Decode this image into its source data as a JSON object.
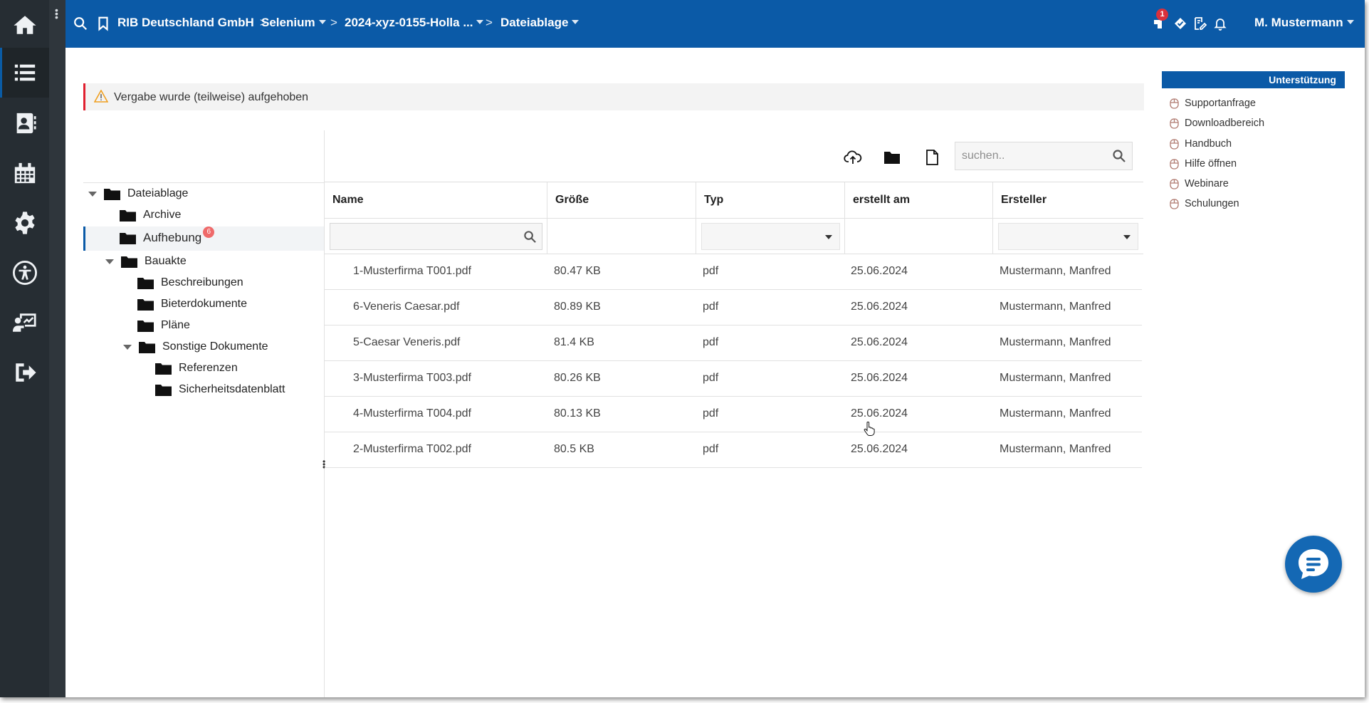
{
  "colors": {
    "brand": "#0b5aa7",
    "rail": "#262d33",
    "alert_border": "#e0202f",
    "badge": "#ef6a6a"
  },
  "rail": {
    "items": [
      {
        "name": "home-icon"
      },
      {
        "name": "list-icon",
        "active": true
      },
      {
        "name": "contacts-icon"
      },
      {
        "name": "calendar-icon"
      },
      {
        "name": "gear-icon"
      },
      {
        "name": "accessibility-icon"
      },
      {
        "name": "presentation-icon"
      },
      {
        "name": "logout-icon"
      }
    ]
  },
  "topbar": {
    "breadcrumbs": [
      "RIB Deutschland GmbH",
      "Selenium",
      "2024-xyz-0155-Holla ...",
      "Dateiablage"
    ],
    "notification_count": "1",
    "user": "M. Mustermann"
  },
  "alert": {
    "text": "Vergabe wurde (teilweise) aufgehoben"
  },
  "support": {
    "title": "Unterstützung",
    "items": [
      "Supportanfrage",
      "Downloadbereich",
      "Handbuch",
      "Hilfe öffnen",
      "Webinare",
      "Schulungen"
    ]
  },
  "tree": {
    "root": "Dateiablage",
    "archive": "Archive",
    "aufhebung": "Aufhebung",
    "aufhebung_count": "6",
    "bauakte": "Bauakte",
    "beschreibungen": "Beschreibungen",
    "bieterdokumente": "Bieterdokumente",
    "plaene": "Pläne",
    "sonstige": "Sonstige Dokumente",
    "referenzen": "Referenzen",
    "sicherheitsdatenblatt": "Sicherheitsdatenblatt"
  },
  "search": {
    "placeholder": "suchen.."
  },
  "grid": {
    "columns": [
      "Name",
      "Größe",
      "Typ",
      "erstellt am",
      "Ersteller"
    ],
    "rows": [
      {
        "name": "1-Musterfirma T001.pdf",
        "size": "80.47 KB",
        "type": "pdf",
        "created": "25.06.2024",
        "author": "Mustermann, Manfred"
      },
      {
        "name": "6-Veneris Caesar.pdf",
        "size": "80.89 KB",
        "type": "pdf",
        "created": "25.06.2024",
        "author": "Mustermann, Manfred"
      },
      {
        "name": "5-Caesar Veneris.pdf",
        "size": "81.4 KB",
        "type": "pdf",
        "created": "25.06.2024",
        "author": "Mustermann, Manfred"
      },
      {
        "name": "3-Musterfirma T003.pdf",
        "size": "80.26 KB",
        "type": "pdf",
        "created": "25.06.2024",
        "author": "Mustermann, Manfred"
      },
      {
        "name": "4-Musterfirma T004.pdf",
        "size": "80.13 KB",
        "type": "pdf",
        "created": "25.06.2024",
        "author": "Mustermann, Manfred"
      },
      {
        "name": "2-Musterfirma T002.pdf",
        "size": "80.5 KB",
        "type": "pdf",
        "created": "25.06.2024",
        "author": "Mustermann, Manfred"
      }
    ]
  }
}
